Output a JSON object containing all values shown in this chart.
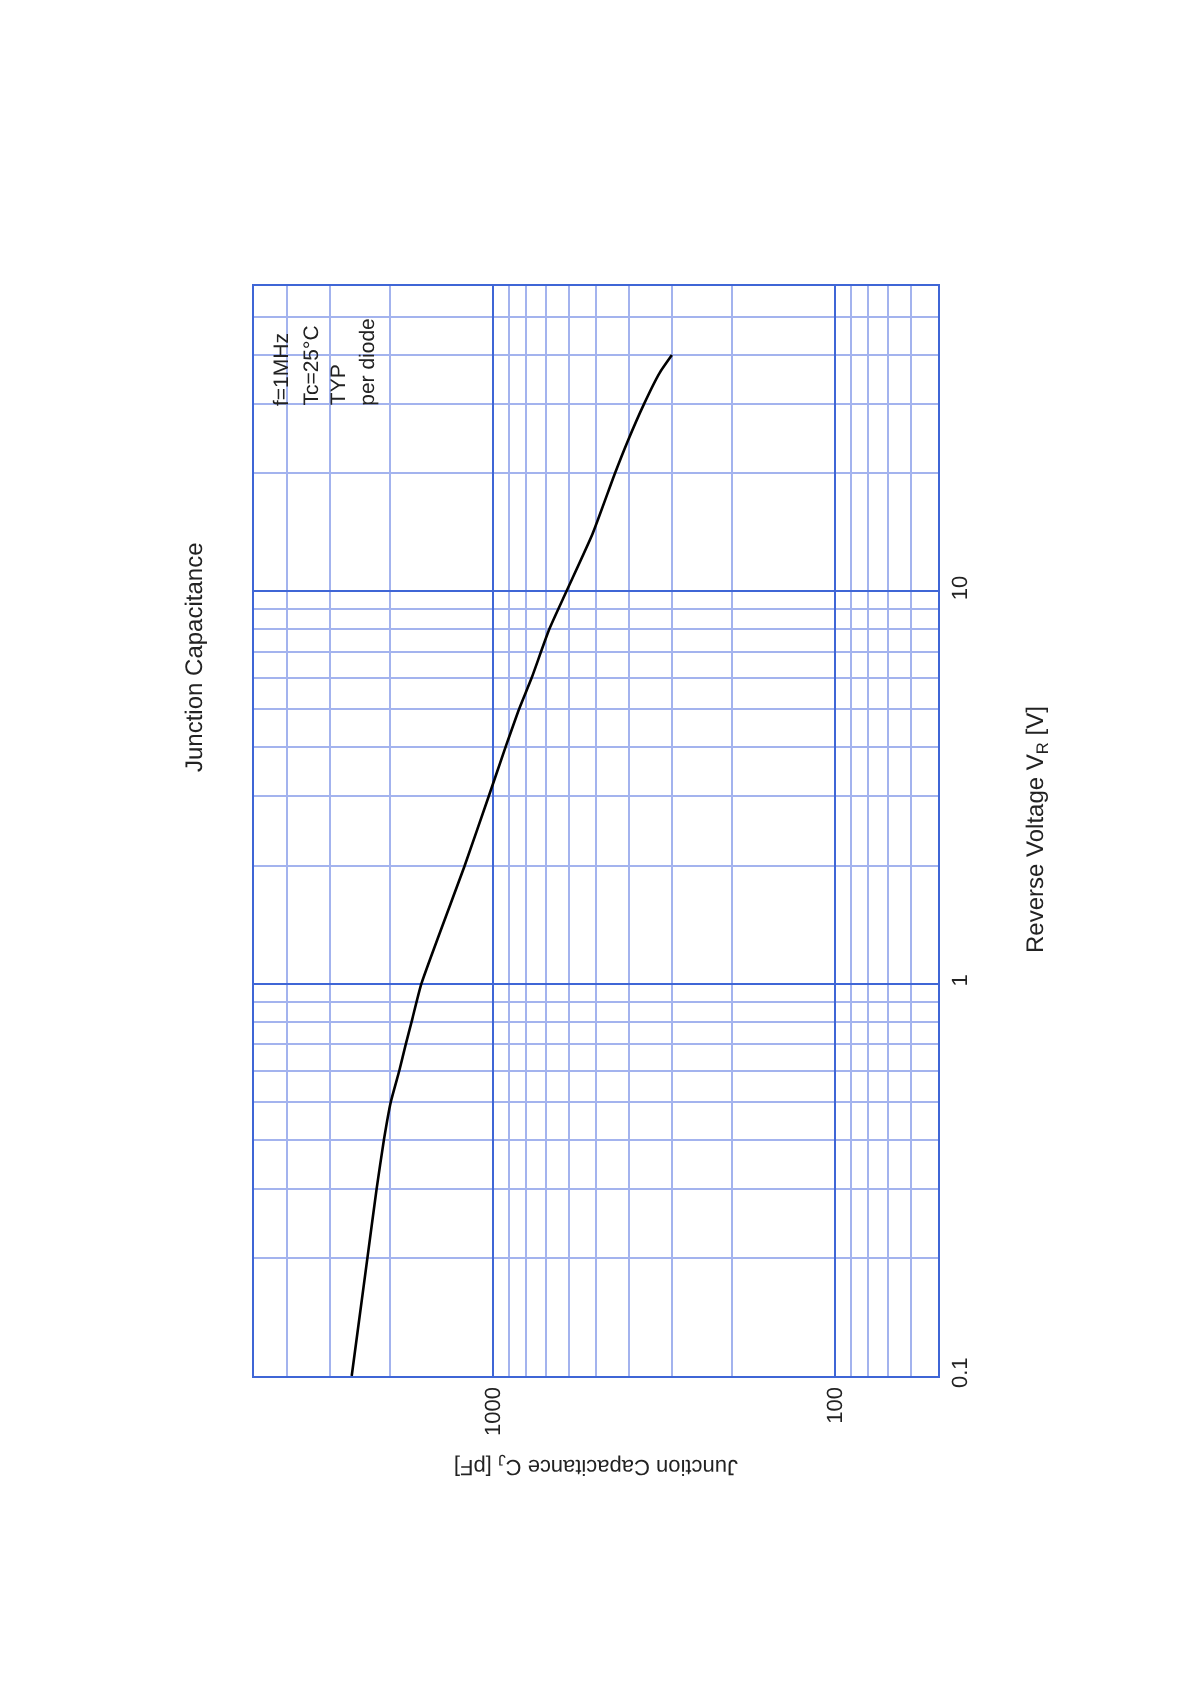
{
  "chart_data": {
    "type": "line",
    "title": "Junction Capacitance",
    "xlabel": "Junction Capacitance C$_{J}$ [pF]",
    "ylabel": "Reverse Voltage V$_{R}$ [V]",
    "x": [
      2590,
      2330,
      2190,
      2085,
      1990,
      1880,
      1800,
      1730,
      1620,
      1210,
      1030,
      920,
      840,
      772,
      685,
      610,
      512,
      440,
      405,
      362,
      326,
      300
    ],
    "series": [
      {
        "color": "#000000",
        "values": [
          0.1,
          0.2,
          0.3,
          0.4,
          0.5,
          0.6,
          0.7,
          0.8,
          1,
          2,
          3,
          4,
          5,
          6,
          8,
          10,
          14,
          20,
          24,
          30,
          36,
          40
        ]
      }
    ],
    "log": "xy",
    "xlim": [
      5000,
      50
    ],
    "ylim": [
      0.1,
      60
    ],
    "xticks": [
      1000,
      100,
      {
        "value": 60,
        "label": null
      },
      {
        "value": 70,
        "label": null
      },
      {
        "value": 80,
        "label": null
      },
      {
        "value": 90,
        "label": null
      },
      {
        "value": 200,
        "label": null
      },
      {
        "value": 300,
        "label": null
      },
      {
        "value": 400,
        "label": null
      },
      {
        "value": 500,
        "label": null
      },
      {
        "value": 600,
        "label": null
      },
      {
        "value": 700,
        "label": null
      },
      {
        "value": 800,
        "label": null
      },
      {
        "value": 900,
        "label": null
      },
      {
        "value": 2000,
        "label": null
      },
      {
        "value": 3000,
        "label": null
      },
      {
        "value": 4000,
        "label": null
      }
    ],
    "yticks": [
      0.1,
      1,
      10,
      {
        "value": 0.2,
        "label": null
      },
      {
        "value": 0.3,
        "label": null
      },
      {
        "value": 0.4,
        "label": null
      },
      {
        "value": 0.5,
        "label": null
      },
      {
        "value": 0.6,
        "label": null
      },
      {
        "value": 0.7,
        "label": null
      },
      {
        "value": 0.8,
        "label": null
      },
      {
        "value": 0.9,
        "label": null
      },
      {
        "value": 2,
        "label": null
      },
      {
        "value": 3,
        "label": null
      },
      {
        "value": 4,
        "label": null
      },
      {
        "value": 5,
        "label": null
      },
      {
        "value": 6,
        "label": null
      },
      {
        "value": 7,
        "label": null
      },
      {
        "value": 8,
        "label": null
      },
      {
        "value": 9,
        "label": null
      },
      {
        "value": 20,
        "label": null
      },
      {
        "value": 30,
        "label": null
      },
      {
        "value": 40,
        "label": null
      },
      {
        "value": 50,
        "label": null
      }
    ],
    "grid": true,
    "annotations": [
      "f=1MHz",
      "Tc=25°C",
      "TYP",
      "per diode"
    ]
  }
}
